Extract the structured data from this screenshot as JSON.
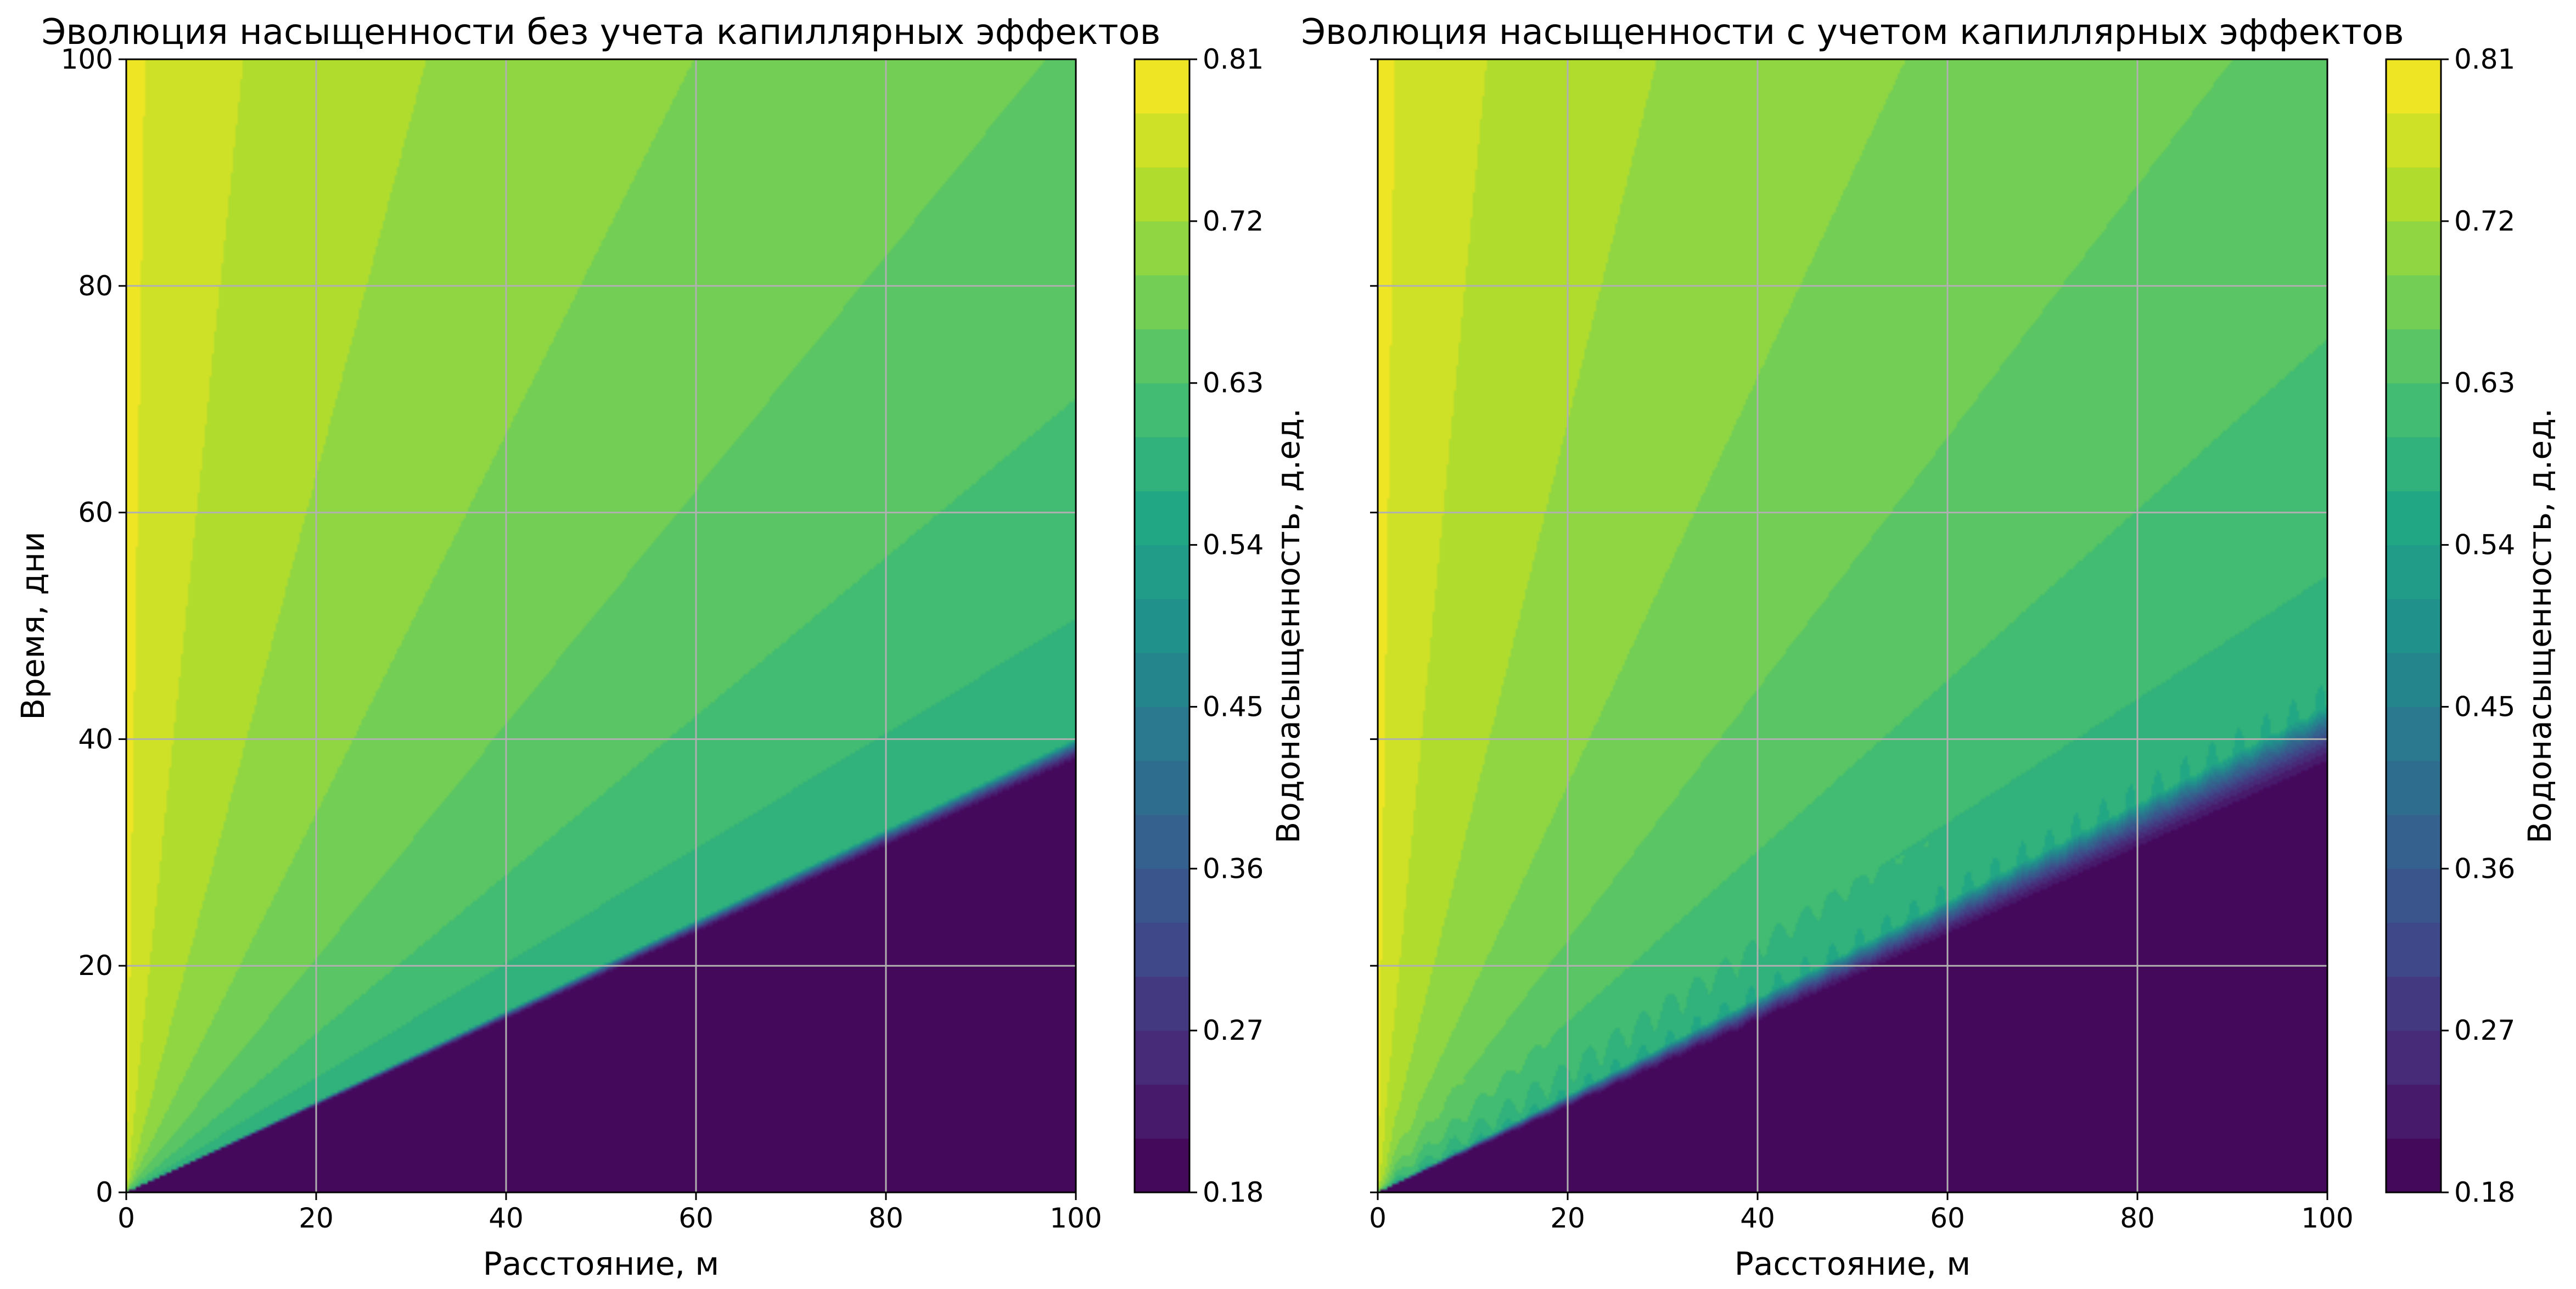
{
  "chart_data": [
    {
      "type": "heatmap",
      "title": "Эволюция насыщенности без учета капиллярных эффектов",
      "xlabel": "Расстояние, м",
      "ylabel": "Время, дни",
      "xlim": [
        0,
        100
      ],
      "ylim": [
        0,
        100
      ],
      "xticks": [
        "0",
        "20",
        "40",
        "60",
        "80",
        "100"
      ],
      "yticks": [
        "0",
        "20",
        "40",
        "60",
        "80",
        "100"
      ],
      "grid": true,
      "colormap": "viridis",
      "front_time_at_x100": 40,
      "front_width": 1.2,
      "capillary_effects": false,
      "colorbar": {
        "label": "Водонасыщенность, д.ед.",
        "min": 0.18,
        "max": 0.81,
        "levels": 21,
        "ticks": [
          "0.18",
          "0.27",
          "0.36",
          "0.45",
          "0.54",
          "0.63",
          "0.72",
          "0.81"
        ]
      }
    },
    {
      "type": "heatmap",
      "title": "Эволюция насыщенности с учетом капиллярных эффектов",
      "xlabel": "Расстояние, м",
      "ylabel": "",
      "xlim": [
        0,
        100
      ],
      "ylim": [
        0,
        100
      ],
      "xticks": [
        "0",
        "20",
        "40",
        "60",
        "80",
        "100"
      ],
      "yticks": [],
      "grid": true,
      "colormap": "viridis",
      "front_time_at_x100": 43,
      "front_width": 3.5,
      "capillary_effects": true,
      "colorbar": {
        "label": "Водонасыщенность, д.ед.",
        "min": 0.18,
        "max": 0.81,
        "levels": 21,
        "ticks": [
          "0.18",
          "0.27",
          "0.36",
          "0.45",
          "0.54",
          "0.63",
          "0.72",
          "0.81"
        ]
      }
    }
  ]
}
